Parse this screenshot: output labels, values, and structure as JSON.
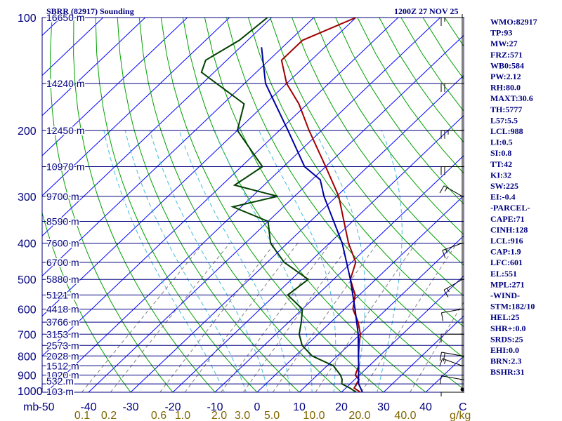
{
  "header": {
    "station": "SBRR (82917) Sounding",
    "time": "1200Z 27 NOV 25"
  },
  "chart_data": {
    "type": "line",
    "title": "SBRR (82917) Sounding",
    "subtitle": "1200Z 27 NOV 25",
    "xlabel": "C",
    "ylabel": "mb",
    "mixing_ratio_unit": "g/kg",
    "ylim": [
      1000,
      100
    ],
    "xlim": [
      -50,
      50
    ],
    "pressure_ticks": [
      "100",
      "200",
      "300",
      "400",
      "500",
      "600",
      "700",
      "800",
      "900",
      "1000"
    ],
    "temperature_ticks": [
      "-50",
      "-40",
      "-30",
      "-20",
      "-10",
      "0",
      "10",
      "20",
      "30",
      "40"
    ],
    "mixing_ratio_ticks": [
      "0.1",
      "0.2",
      "0.6",
      "1.0",
      "2.0",
      "3.0",
      "5.0",
      "10.0",
      "20.0",
      "40.0"
    ],
    "height_labels": [
      "16650 m",
      "14240 m",
      "12450 m",
      "10970 m",
      "9700 m",
      "8590 m",
      "7600 m",
      "6700 m",
      "5880 m",
      "5121 m",
      "4418 m",
      "3766 m",
      "3153 m",
      "2573 m",
      "2028 m",
      "1512 m",
      "1020 m",
      "532 m",
      "103 m"
    ],
    "height_pressures": [
      100,
      150,
      200,
      250,
      300,
      350,
      400,
      450,
      500,
      550,
      600,
      650,
      700,
      750,
      800,
      850,
      900,
      950,
      1000
    ],
    "series": [
      {
        "name": "Temperature",
        "color": "#a00000",
        "points": [
          {
            "p": 1000,
            "t": 24.5
          },
          {
            "p": 975,
            "t": 22.0
          },
          {
            "p": 950,
            "t": 21.5
          },
          {
            "p": 925,
            "t": 21.0
          },
          {
            "p": 900,
            "t": 19.0
          },
          {
            "p": 850,
            "t": 17.5
          },
          {
            "p": 800,
            "t": 15.0
          },
          {
            "p": 750,
            "t": 12.5
          },
          {
            "p": 700,
            "t": 10.0
          },
          {
            "p": 650,
            "t": 6.5
          },
          {
            "p": 600,
            "t": 2.0
          },
          {
            "p": 550,
            "t": -1.0
          },
          {
            "p": 500,
            "t": -6.0
          },
          {
            "p": 450,
            "t": -9.0
          },
          {
            "p": 400,
            "t": -15.5
          },
          {
            "p": 350,
            "t": -22.0
          },
          {
            "p": 300,
            "t": -29.5
          },
          {
            "p": 250,
            "t": -40.0
          },
          {
            "p": 200,
            "t": -53.0
          },
          {
            "p": 170,
            "t": -62.0
          },
          {
            "p": 150,
            "t": -70.0
          },
          {
            "p": 130,
            "t": -77.0
          },
          {
            "p": 115,
            "t": -77.0
          },
          {
            "p": 100,
            "t": -70.0
          }
        ]
      },
      {
        "name": "Dewpoint",
        "color": "#004000",
        "points": [
          {
            "p": 1000,
            "t": 23.5
          },
          {
            "p": 975,
            "t": 21.0
          },
          {
            "p": 950,
            "t": 18.0
          },
          {
            "p": 925,
            "t": 17.0
          },
          {
            "p": 900,
            "t": 15.5
          },
          {
            "p": 850,
            "t": 11.5
          },
          {
            "p": 800,
            "t": 4.0
          },
          {
            "p": 750,
            "t": -1.0
          },
          {
            "p": 700,
            "t": -4.5
          },
          {
            "p": 650,
            "t": -7.0
          },
          {
            "p": 600,
            "t": -10.0
          },
          {
            "p": 550,
            "t": -17.0
          },
          {
            "p": 500,
            "t": -16.0
          },
          {
            "p": 450,
            "t": -26.0
          },
          {
            "p": 400,
            "t": -34.0
          },
          {
            "p": 350,
            "t": -40.0
          },
          {
            "p": 320,
            "t": -52.0
          },
          {
            "p": 300,
            "t": -44.0
          },
          {
            "p": 280,
            "t": -57.0
          },
          {
            "p": 250,
            "t": -55.0
          },
          {
            "p": 200,
            "t": -70.0
          },
          {
            "p": 170,
            "t": -75.0
          },
          {
            "p": 140,
            "t": -93.0
          },
          {
            "p": 130,
            "t": -95.0
          },
          {
            "p": 115,
            "t": -92.0
          },
          {
            "p": 100,
            "t": -91.0
          }
        ]
      },
      {
        "name": "Parcel",
        "color": "#0000a0",
        "points": [
          {
            "p": 1000,
            "t": 25.0
          },
          {
            "p": 950,
            "t": 22.0
          },
          {
            "p": 916,
            "t": 20.5
          },
          {
            "p": 850,
            "t": 17.5
          },
          {
            "p": 800,
            "t": 15.0
          },
          {
            "p": 700,
            "t": 9.5
          },
          {
            "p": 600,
            "t": 2.5
          },
          {
            "p": 500,
            "t": -6.0
          },
          {
            "p": 400,
            "t": -17.0
          },
          {
            "p": 300,
            "t": -33.0
          },
          {
            "p": 271,
            "t": -38.0
          },
          {
            "p": 250,
            "t": -45.0
          },
          {
            "p": 200,
            "t": -58.0
          },
          {
            "p": 150,
            "t": -75.0
          },
          {
            "p": 120,
            "t": -85.0
          }
        ]
      }
    ],
    "wind_profile": [
      {
        "p": 1000,
        "dir": 90,
        "kt": 5
      },
      {
        "p": 925,
        "dir": 80,
        "kt": 10
      },
      {
        "p": 850,
        "dir": 70,
        "kt": 15
      },
      {
        "p": 800,
        "dir": 80,
        "kt": 20
      },
      {
        "p": 700,
        "dir": 90,
        "kt": 10
      },
      {
        "p": 600,
        "dir": 100,
        "kt": 10
      },
      {
        "p": 500,
        "dir": 120,
        "kt": 15
      },
      {
        "p": 400,
        "dir": 110,
        "kt": 15
      },
      {
        "p": 300,
        "dir": 60,
        "kt": 15
      },
      {
        "p": 250,
        "dir": 90,
        "kt": 20
      },
      {
        "p": 200,
        "dir": 90,
        "kt": 25
      },
      {
        "p": 150,
        "dir": 90,
        "kt": 20
      },
      {
        "p": 100,
        "dir": 90,
        "kt": 15
      }
    ]
  },
  "indices": [
    "WMO:82917",
    "TP:93",
    "MW:27",
    "FRZ:571",
    "WB0:584",
    "PW:2.12",
    "RH:80.0",
    "MAXT:30.6",
    "TH:5777",
    "L57:5.5",
    "LCL:988",
    "LI:0.5",
    "SI:0.8",
    "TT:42",
    "KI:32",
    "SW:225",
    "EI:-0.4",
    "-PARCEL-",
    "CAPE:71",
    "CINH:128",
    "LCL:916",
    "CAP:1.9",
    "LFC:601",
    "EL:551",
    "MPL:271",
    "-WIND-",
    "STM:182/10",
    "HEL:25",
    "SHR+:0.0",
    "SRDS:25",
    "EHI:0.0",
    "BRN:2.3",
    "BSHR:31"
  ],
  "colors": {
    "isobar": "#000080",
    "isotherm": "#0000ff",
    "dry_adiabat": "#00a000",
    "moist_adiabat": "#44bbdd",
    "mixing_ratio": "#808080",
    "text": "#000080",
    "mixing_label": "#806600"
  }
}
